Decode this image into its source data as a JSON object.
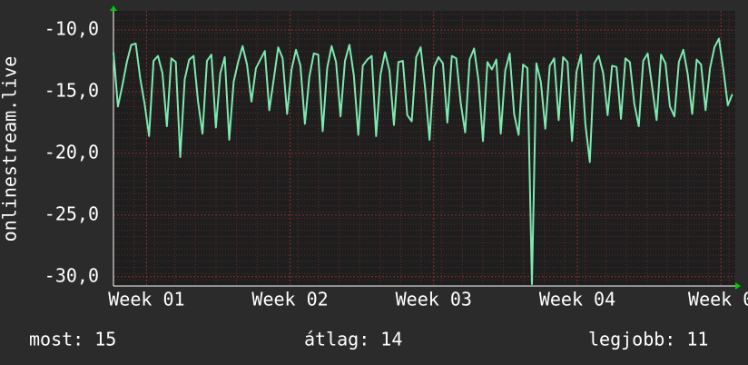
{
  "chart_data": {
    "type": "line",
    "y_label": "onlinestream.live",
    "xlim": [
      0.77,
      5.1
    ],
    "ylim": [
      -30.75,
      -8.45
    ],
    "xticks": [
      {
        "value": 1,
        "label": "Week 01"
      },
      {
        "value": 2,
        "label": "Week 02"
      },
      {
        "value": 3,
        "label": "Week 03"
      },
      {
        "value": 4,
        "label": "Week 04"
      },
      {
        "value": 5,
        "label": "Week 0"
      }
    ],
    "yticks": [
      {
        "value": -30,
        "label": "-30,0"
      },
      {
        "value": -25,
        "label": "-25,0"
      },
      {
        "value": -20,
        "label": "-20,0"
      },
      {
        "value": -15,
        "label": "-15,0"
      },
      {
        "value": -10,
        "label": "-10,0"
      }
    ],
    "grid": true,
    "series": [
      {
        "color": "#7ee8b0",
        "x": [
          0.77,
          0.801,
          0.832,
          0.863,
          0.894,
          0.925,
          0.956,
          0.987,
          1.018,
          1.049,
          1.08,
          1.111,
          1.142,
          1.173,
          1.204,
          1.235,
          1.266,
          1.297,
          1.328,
          1.359,
          1.39,
          1.421,
          1.452,
          1.483,
          1.514,
          1.545,
          1.576,
          1.607,
          1.638,
          1.669,
          1.7,
          1.731,
          1.762,
          1.793,
          1.824,
          1.855,
          1.886,
          1.917,
          1.948,
          1.979,
          2.01,
          2.041,
          2.072,
          2.103,
          2.134,
          2.165,
          2.196,
          2.227,
          2.258,
          2.289,
          2.32,
          2.351,
          2.382,
          2.413,
          2.444,
          2.475,
          2.506,
          2.537,
          2.568,
          2.599,
          2.63,
          2.661,
          2.692,
          2.723,
          2.754,
          2.785,
          2.816,
          2.847,
          2.878,
          2.909,
          2.94,
          2.971,
          3.002,
          3.033,
          3.064,
          3.095,
          3.126,
          3.157,
          3.188,
          3.219,
          3.25,
          3.281,
          3.312,
          3.343,
          3.374,
          3.405,
          3.436,
          3.467,
          3.498,
          3.529,
          3.56,
          3.591,
          3.622,
          3.653,
          3.684,
          3.715,
          3.746,
          3.777,
          3.808,
          3.839,
          3.87,
          3.901,
          3.932,
          3.963,
          3.994,
          4.025,
          4.056,
          4.087,
          4.118,
          4.149,
          4.18,
          4.211,
          4.242,
          4.273,
          4.304,
          4.335,
          4.366,
          4.397,
          4.428,
          4.459,
          4.49,
          4.521,
          4.552,
          4.583,
          4.614,
          4.645,
          4.676,
          4.707,
          4.738,
          4.769,
          4.8,
          4.831,
          4.862,
          4.893,
          4.924,
          4.955,
          4.986,
          5.017,
          5.048,
          5.079
        ],
        "values": [
          -11.8,
          -16.2,
          -14.5,
          -12.6,
          -11.2,
          -11.1,
          -13.9,
          -16.0,
          -18.6,
          -12.5,
          -12.1,
          -13.5,
          -17.8,
          -12.3,
          -12.6,
          -20.3,
          -14.0,
          -12.4,
          -12.1,
          -15.8,
          -18.4,
          -12.5,
          -12.0,
          -17.9,
          -13.5,
          -12.2,
          -18.9,
          -14.2,
          -12.6,
          -11.3,
          -12.8,
          -15.8,
          -13.1,
          -12.4,
          -11.7,
          -16.5,
          -14.0,
          -11.4,
          -12.3,
          -16.8,
          -13.2,
          -11.6,
          -12.9,
          -17.6,
          -13.8,
          -11.9,
          -12.0,
          -18.2,
          -13.1,
          -11.3,
          -12.6,
          -17.0,
          -12.5,
          -11.2,
          -13.7,
          -18.5,
          -12.9,
          -12.4,
          -12.1,
          -18.6,
          -13.6,
          -11.8,
          -13.3,
          -17.7,
          -12.6,
          -12.5,
          -16.9,
          -17.4,
          -12.2,
          -11.4,
          -14.7,
          -18.9,
          -13.0,
          -12.2,
          -12.7,
          -17.5,
          -12.1,
          -12.3,
          -15.9,
          -18.3,
          -12.4,
          -11.5,
          -14.1,
          -19.0,
          -12.6,
          -13.2,
          -12.4,
          -18.4,
          -13.3,
          -11.9,
          -16.8,
          -18.5,
          -12.8,
          -13.1,
          -30.6,
          -12.7,
          -14.2,
          -18.0,
          -12.9,
          -12.3,
          -17.3,
          -12.2,
          -12.6,
          -19.0,
          -13.4,
          -12.0,
          -17.6,
          -20.7,
          -12.7,
          -12.1,
          -13.5,
          -16.9,
          -12.9,
          -13.0,
          -17.2,
          -12.3,
          -12.6,
          -16.0,
          -17.8,
          -12.5,
          -11.9,
          -14.6,
          -17.3,
          -12.0,
          -12.7,
          -16.2,
          -17.0,
          -12.6,
          -11.6,
          -13.6,
          -16.8,
          -12.4,
          -12.8,
          -16.5,
          -13.1,
          -11.4,
          -10.7,
          -13.2,
          -16.1,
          -15.2
        ]
      }
    ],
    "stats": [
      "most: 15",
      "átlag: 14",
      "legjobb: 11"
    ]
  }
}
